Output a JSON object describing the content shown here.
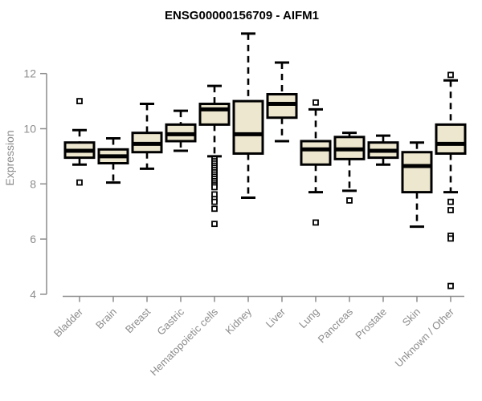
{
  "chart_data": {
    "type": "boxplot",
    "title": "ENSG00000156709 - AIFM1",
    "xlabel": "",
    "ylabel": "Expression",
    "ylim": [
      4,
      12
    ],
    "yticks": [
      4,
      6,
      8,
      10,
      12
    ],
    "grid": false,
    "legend": "none",
    "categories": [
      "Bladder",
      "Brain",
      "Breast",
      "Gastric",
      "Hematopoietic cells",
      "Kidney",
      "Liver",
      "Lung",
      "Pancreas",
      "Prostate",
      "Skin",
      "Unknown / Other"
    ],
    "boxes": [
      {
        "label": "Bladder",
        "whisker_low": 8.7,
        "q1": 8.95,
        "median": 9.2,
        "q3": 9.5,
        "whisker_high": 9.95,
        "outliers": [
          11.0,
          8.05
        ]
      },
      {
        "label": "Brain",
        "whisker_low": 8.05,
        "q1": 8.75,
        "median": 9.0,
        "q3": 9.25,
        "whisker_high": 9.65,
        "outliers": []
      },
      {
        "label": "Breast",
        "whisker_low": 8.55,
        "q1": 9.15,
        "median": 9.45,
        "q3": 9.85,
        "whisker_high": 10.9,
        "outliers": []
      },
      {
        "label": "Gastric",
        "whisker_low": 9.2,
        "q1": 9.55,
        "median": 9.8,
        "q3": 10.15,
        "whisker_high": 10.65,
        "outliers": []
      },
      {
        "label": "Hematopoietic cells",
        "whisker_low": 9.0,
        "q1": 10.15,
        "median": 10.7,
        "q3": 10.9,
        "whisker_high": 11.55,
        "outliers": [
          8.9,
          8.82,
          8.74,
          8.66,
          8.58,
          8.5,
          8.42,
          8.34,
          8.26,
          8.18,
          8.1,
          8.02,
          7.95,
          7.88,
          7.62,
          7.45,
          7.35,
          7.1,
          6.55
        ]
      },
      {
        "label": "Kidney",
        "whisker_low": 7.5,
        "q1": 9.1,
        "median": 9.8,
        "q3": 11.0,
        "whisker_high": 13.45,
        "outliers": []
      },
      {
        "label": "Liver",
        "whisker_low": 9.55,
        "q1": 10.4,
        "median": 10.9,
        "q3": 11.25,
        "whisker_high": 12.4,
        "outliers": []
      },
      {
        "label": "Lung",
        "whisker_low": 7.7,
        "q1": 8.7,
        "median": 9.25,
        "q3": 9.55,
        "whisker_high": 10.7,
        "outliers": [
          10.95,
          6.6
        ]
      },
      {
        "label": "Pancreas",
        "whisker_low": 7.75,
        "q1": 8.9,
        "median": 9.25,
        "q3": 9.7,
        "whisker_high": 9.85,
        "outliers": [
          7.4
        ]
      },
      {
        "label": "Prostate",
        "whisker_low": 8.7,
        "q1": 8.95,
        "median": 9.2,
        "q3": 9.5,
        "whisker_high": 9.75,
        "outliers": []
      },
      {
        "label": "Skin",
        "whisker_low": 6.45,
        "q1": 7.7,
        "median": 8.65,
        "q3": 9.15,
        "whisker_high": 9.5,
        "outliers": []
      },
      {
        "label": "Unknown / Other",
        "whisker_low": 7.7,
        "q1": 9.1,
        "median": 9.45,
        "q3": 10.15,
        "whisker_high": 11.75,
        "outliers": [
          11.95,
          7.35,
          7.05,
          6.12,
          6.02,
          4.3
        ]
      }
    ],
    "colors": {
      "box_fill": "#EDE7CF",
      "box_stroke": "#000000",
      "median": "#000000",
      "whisker": "#000000",
      "outlier_stroke": "#000000",
      "outlier_fill": "#FFFFFF",
      "axis": "#8C8C8C",
      "title": "#000000",
      "background": "#FFFFFF"
    }
  }
}
